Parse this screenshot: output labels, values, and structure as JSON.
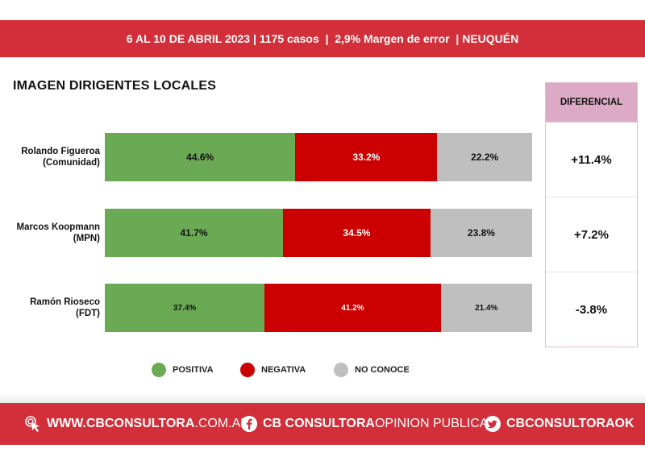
{
  "header": {
    "text": "6 AL 10 DE ABRIL 2023 | 1175 casos  |  2,9% Margen de error  | NEUQUÉN"
  },
  "title": "IMAGEN DIRIGENTES LOCALES",
  "chart_data": {
    "type": "bar",
    "orientation": "horizontal-stacked-100",
    "title": "IMAGEN DIRIGENTES LOCALES",
    "categories": [
      "Rolando Figueroa (Comunidad)",
      "Marcos Koopmann (MPN)",
      "Ramón Rioseco (FDT)"
    ],
    "category_lines": [
      [
        "Rolando Figueroa",
        "(Comunidad)"
      ],
      [
        "Marcos Koopmann",
        "(MPN)"
      ],
      [
        "Ramón Rioseco",
        "(FDT)"
      ]
    ],
    "series": [
      {
        "name": "POSITIVA",
        "values": [
          44.6,
          41.7,
          37.4
        ],
        "labels": [
          "44.6%",
          "41.7%",
          "37.4%"
        ],
        "color": "#6aaa54"
      },
      {
        "name": "NEGATIVA",
        "values": [
          33.2,
          34.5,
          41.2
        ],
        "labels": [
          "33.2%",
          "34.5%",
          "41.2%"
        ],
        "color": "#cc0000"
      },
      {
        "name": "NO CONOCE",
        "values": [
          22.2,
          23.8,
          21.4
        ],
        "labels": [
          "22.2%",
          "23.8%",
          "21.4%"
        ],
        "color": "#bfbfbf"
      }
    ],
    "xlim": [
      0,
      100
    ],
    "legend_position": "bottom"
  },
  "diferencial": {
    "header": "DIFERENCIAL",
    "values": [
      "+11.4%",
      "+7.2%",
      "-3.8%"
    ]
  },
  "legend": [
    "POSITIVA",
    "NEGATIVA",
    "NO CONOCE"
  ],
  "footer": {
    "web_bold": "WWW.CBCONSULTORA",
    "web_light": ".COM.AR",
    "facebook_bold": "CB CONSULTORA",
    "facebook_light": " OPINION PUBLICA",
    "twitter": "CBCONSULTORAOK"
  },
  "colors": {
    "brand_red": "#d32f3a",
    "header_pink": "#dcaac5"
  }
}
